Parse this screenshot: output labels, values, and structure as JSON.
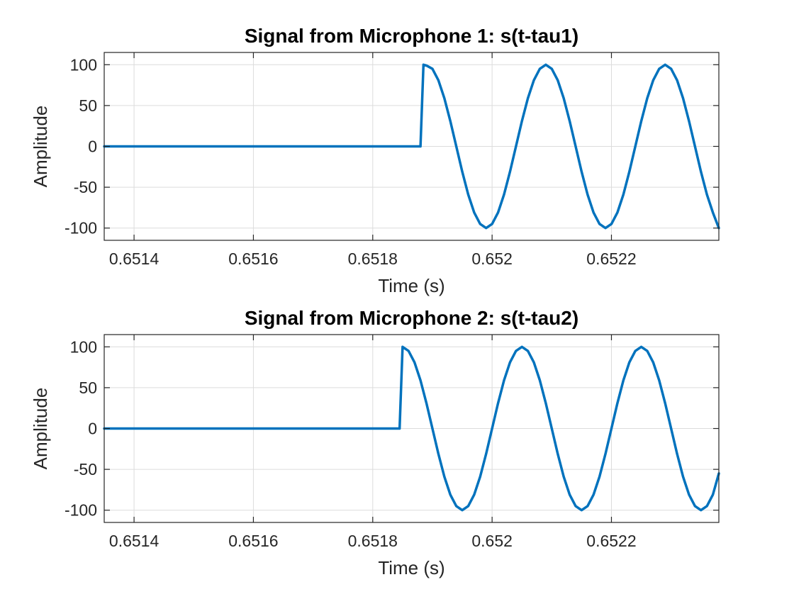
{
  "chart_data": [
    {
      "type": "line",
      "title": "Signal from Microphone 1: s(t-tau1)",
      "xlabel": "Time (s)",
      "ylabel": "Amplitude",
      "xlim": [
        0.65135,
        0.65238
      ],
      "ylim": [
        -115,
        115
      ],
      "xticks": [
        0.6514,
        0.6516,
        0.6518,
        0.652,
        0.6522
      ],
      "xtick_labels": [
        "0.6514",
        "0.6516",
        "0.6518",
        "0.652",
        "0.6522"
      ],
      "yticks": [
        100,
        50,
        0,
        -50,
        -100
      ],
      "ytick_labels": [
        "100",
        "50",
        "0",
        "-50",
        "-100"
      ],
      "grid": true,
      "series": [
        {
          "color": "#0072BD",
          "x": [
            0.65135,
            0.65188,
            0.651885,
            0.65189,
            0.6519,
            0.65191,
            0.65192,
            0.65193,
            0.65194,
            0.65195,
            0.65196,
            0.65197,
            0.65198,
            0.65199,
            0.652,
            0.65201,
            0.65202,
            0.65203,
            0.65204,
            0.65205,
            0.65206,
            0.65207,
            0.65208,
            0.65209,
            0.6521,
            0.65211,
            0.65212,
            0.65213,
            0.65214,
            0.65215,
            0.65216,
            0.65217,
            0.65218,
            0.65219,
            0.6522,
            0.65221,
            0.65222,
            0.65223,
            0.65224,
            0.65225,
            0.65226,
            0.65227,
            0.65228,
            0.65229,
            0.6523,
            0.65231,
            0.65232,
            0.65233,
            0.65234,
            0.65235,
            0.65236,
            0.65237,
            0.65238
          ],
          "y": [
            0,
            0,
            100,
            99,
            95,
            81,
            59,
            31,
            0,
            -31,
            -59,
            -81,
            -95,
            -100,
            -95,
            -81,
            -59,
            -31,
            0,
            31,
            59,
            81,
            95,
            100,
            95,
            81,
            59,
            31,
            0,
            -31,
            -59,
            -81,
            -95,
            -100,
            -95,
            -81,
            -59,
            -31,
            0,
            31,
            59,
            81,
            95,
            100,
            95,
            81,
            59,
            31,
            0,
            -31,
            -59,
            -81,
            -100
          ]
        }
      ]
    },
    {
      "type": "line",
      "title": "Signal from Microphone 2: s(t-tau2)",
      "xlabel": "Time (s)",
      "ylabel": "Amplitude",
      "xlim": [
        0.65135,
        0.65238
      ],
      "ylim": [
        -115,
        115
      ],
      "xticks": [
        0.6514,
        0.6516,
        0.6518,
        0.652,
        0.6522
      ],
      "xtick_labels": [
        "0.6514",
        "0.6516",
        "0.6518",
        "0.652",
        "0.6522"
      ],
      "yticks": [
        100,
        50,
        0,
        -50,
        -100
      ],
      "ytick_labels": [
        "100",
        "50",
        "0",
        "-50",
        "-100"
      ],
      "grid": true,
      "series": [
        {
          "color": "#0072BD",
          "x": [
            0.65135,
            0.651845,
            0.65185,
            0.65186,
            0.65187,
            0.65188,
            0.65189,
            0.6519,
            0.65191,
            0.65192,
            0.65193,
            0.65194,
            0.65195,
            0.65196,
            0.65197,
            0.65198,
            0.65199,
            0.652,
            0.65201,
            0.65202,
            0.65203,
            0.65204,
            0.65205,
            0.65206,
            0.65207,
            0.65208,
            0.65209,
            0.6521,
            0.65211,
            0.65212,
            0.65213,
            0.65214,
            0.65215,
            0.65216,
            0.65217,
            0.65218,
            0.65219,
            0.6522,
            0.65221,
            0.65222,
            0.65223,
            0.65224,
            0.65225,
            0.65226,
            0.65227,
            0.65228,
            0.65229,
            0.6523,
            0.65231,
            0.65232,
            0.65233,
            0.65234,
            0.65235,
            0.65236,
            0.65237,
            0.65238
          ],
          "y": [
            0,
            0,
            100,
            95,
            81,
            59,
            31,
            0,
            -31,
            -59,
            -81,
            -95,
            -100,
            -95,
            -81,
            -59,
            -31,
            0,
            31,
            59,
            81,
            95,
            100,
            95,
            81,
            59,
            31,
            0,
            -31,
            -59,
            -81,
            -95,
            -100,
            -95,
            -81,
            -59,
            -31,
            0,
            31,
            59,
            81,
            95,
            100,
            95,
            81,
            59,
            31,
            0,
            -31,
            -59,
            -81,
            -95,
            -100,
            -95,
            -81,
            -55
          ]
        }
      ]
    }
  ]
}
